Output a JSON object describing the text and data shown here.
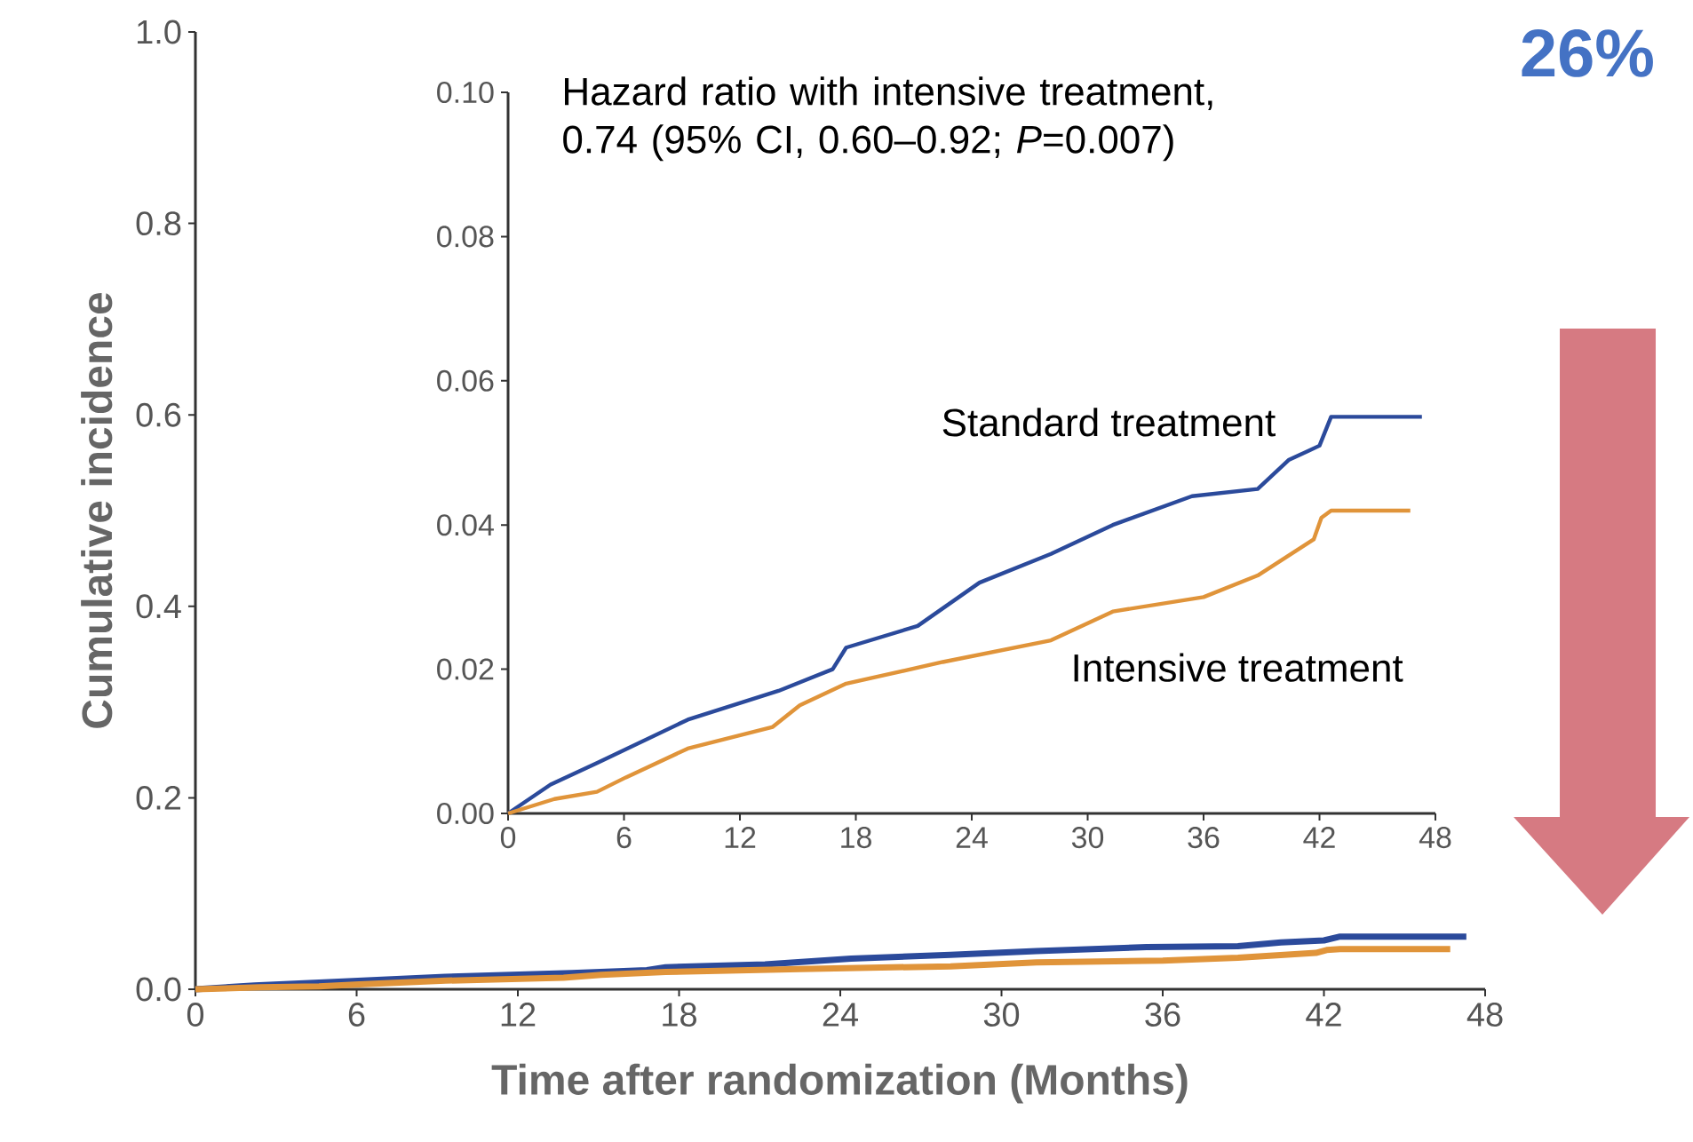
{
  "chart_data": [
    {
      "type": "line",
      "xlabel": "Time after randomization (Months)",
      "ylabel": "Cumulative incidence",
      "xlim": [
        0,
        48
      ],
      "xticks": [
        0,
        6,
        12,
        18,
        24,
        30,
        36,
        42,
        48
      ],
      "ylim": [
        0,
        1
      ],
      "yticks": [
        {
          "value": 0,
          "label": "0.0"
        },
        {
          "value": 0.2,
          "label": "0.2"
        },
        {
          "value": 0.4,
          "label": "0.4"
        },
        {
          "value": 0.6,
          "label": "0.6"
        },
        {
          "value": 0.8,
          "label": "0.8"
        },
        {
          "value": 1,
          "label": "1.0"
        }
      ],
      "series": [
        {
          "color": "#2b4a9b",
          "x": [
            0,
            1.1,
            2.2,
            4.6,
            9.3,
            14,
            16.8,
            17.5,
            21.2,
            24.4,
            28.1,
            31.3,
            35.4,
            38.8,
            40.4,
            42,
            42.6,
            47.3
          ],
          "values": [
            0,
            0.002,
            0.004,
            0.007,
            0.013,
            0.017,
            0.02,
            0.023,
            0.026,
            0.032,
            0.036,
            0.04,
            0.044,
            0.045,
            0.049,
            0.051,
            0.055,
            0.055
          ]
        },
        {
          "color": "#e0943a",
          "x": [
            0,
            2.4,
            4.6,
            6.1,
            9.3,
            13.7,
            15.1,
            17.5,
            22.5,
            28.1,
            31.3,
            36,
            38.8,
            41.7,
            42.1,
            42.6,
            46.7
          ],
          "values": [
            0,
            0.002,
            0.003,
            0.005,
            0.009,
            0.012,
            0.015,
            0.018,
            0.021,
            0.024,
            0.028,
            0.03,
            0.033,
            0.038,
            0.041,
            0.042,
            0.042
          ]
        }
      ],
      "annotations": [
        "26%"
      ]
    },
    {
      "type": "line",
      "xlim": [
        0,
        48
      ],
      "xticks": [
        0,
        6,
        12,
        18,
        24,
        30,
        36,
        42,
        48
      ],
      "ylim": [
        0,
        0.1
      ],
      "yticks": [
        {
          "value": 0,
          "label": "0.00"
        },
        {
          "value": 0.02,
          "label": "0.02"
        },
        {
          "value": 0.04,
          "label": "0.04"
        },
        {
          "value": 0.06,
          "label": "0.06"
        },
        {
          "value": 0.08,
          "label": "0.08"
        },
        {
          "value": 0.1,
          "label": "0.10"
        }
      ],
      "series": [
        {
          "name": "Standard treatment",
          "color": "#2b4a9b",
          "x": [
            0,
            1.1,
            2.2,
            4.6,
            9.3,
            14,
            16.8,
            17.5,
            21.2,
            24.4,
            28.1,
            31.3,
            35.4,
            38.8,
            40.4,
            42,
            42.6,
            47.3
          ],
          "values": [
            0,
            0.002,
            0.004,
            0.007,
            0.013,
            0.017,
            0.02,
            0.023,
            0.026,
            0.032,
            0.036,
            0.04,
            0.044,
            0.045,
            0.049,
            0.051,
            0.055,
            0.055
          ]
        },
        {
          "name": "Intensive treatment",
          "color": "#e0943a",
          "x": [
            0,
            2.4,
            4.6,
            6.1,
            9.3,
            13.7,
            15.1,
            17.5,
            22.5,
            28.1,
            31.3,
            36,
            38.8,
            41.7,
            42.1,
            42.6,
            46.7
          ],
          "values": [
            0,
            0.002,
            0.003,
            0.005,
            0.009,
            0.012,
            0.015,
            0.018,
            0.021,
            0.024,
            0.028,
            0.03,
            0.033,
            0.038,
            0.041,
            0.042,
            0.042
          ]
        }
      ],
      "annotations": [
        "Hazard ratio with intensive treatment, 0.74 (95% CI, 0.60–0.92; *P*=0.007)"
      ]
    }
  ]
}
